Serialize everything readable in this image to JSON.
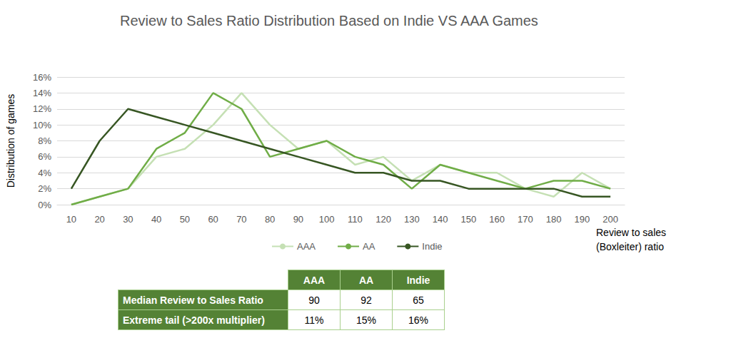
{
  "chart_data": {
    "type": "line",
    "title": "Review to Sales Ratio Distribution Based on Indie VS AAA Games",
    "x_label": "Review to sales\n(Boxleiter) ratio",
    "y_label": "Distribution of games",
    "categories": [
      "10",
      "20",
      "30",
      "40",
      "50",
      "60",
      "70",
      "80",
      "90",
      "100",
      "110",
      "120",
      "130",
      "140",
      "150",
      "160",
      "170",
      "180",
      "190",
      "200"
    ],
    "series": [
      {
        "name": "AAA",
        "color": "#c5e0b4",
        "values": [
          0,
          1,
          2,
          6,
          7,
          10,
          14,
          10,
          7,
          8,
          5,
          6,
          3,
          5,
          4,
          4,
          2,
          1,
          4,
          2
        ]
      },
      {
        "name": "AA",
        "color": "#70ad47",
        "values": [
          0,
          1,
          2,
          7,
          9,
          14,
          12,
          6,
          7,
          8,
          6,
          5,
          2,
          5,
          4,
          3,
          2,
          3,
          3,
          2
        ]
      },
      {
        "name": "Indie",
        "color": "#375623",
        "values": [
          2,
          8,
          12,
          11,
          10,
          9,
          8,
          7,
          6,
          5,
          4,
          4,
          3,
          3,
          2,
          2,
          2,
          2,
          1,
          1
        ]
      }
    ],
    "ylim": [
      0,
      16
    ],
    "yticks": [
      {
        "value": 0,
        "label": "0%"
      },
      {
        "value": 2,
        "label": "2%"
      },
      {
        "value": 4,
        "label": "4%"
      },
      {
        "value": 6,
        "label": "6%"
      },
      {
        "value": 8,
        "label": "8%"
      },
      {
        "value": 10,
        "label": "10%"
      },
      {
        "value": 12,
        "label": "12%"
      },
      {
        "value": 14,
        "label": "14%"
      },
      {
        "value": 16,
        "label": "16%"
      }
    ],
    "grid": true,
    "legend": "bottom"
  },
  "table": {
    "columns": [
      "AAA",
      "AA",
      "Indie"
    ],
    "rows": [
      {
        "label": "Median Review to Sales Ratio",
        "values": [
          90,
          92,
          65
        ]
      },
      {
        "label": "Extreme tail (>200x multiplier)",
        "values": [
          "11%",
          "15%",
          "16%"
        ]
      }
    ]
  }
}
